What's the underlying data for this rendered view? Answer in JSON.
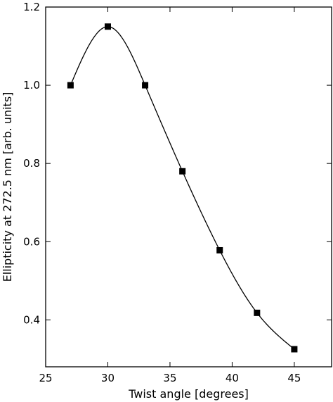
{
  "chart_data": {
    "type": "scatter",
    "title": "",
    "xlabel": "Twist angle [degrees]",
    "ylabel": "Ellipticity at 272.5 nm [arb. units]",
    "xlim": [
      25,
      48
    ],
    "ylim": [
      0.28,
      1.2
    ],
    "xticks": [
      25,
      30,
      35,
      40,
      45
    ],
    "yticks": [
      0.4,
      0.6,
      0.8,
      1.0,
      1.2
    ],
    "xtick_labels": [
      "25",
      "30",
      "35",
      "40",
      "45"
    ],
    "ytick_labels": [
      "0.4",
      "0.6",
      "0.8",
      "1.0",
      "1.2"
    ],
    "grid": false,
    "marker": "square",
    "line": "smooth curve through points",
    "color": "#000000",
    "series": [
      {
        "x": [
          27,
          30,
          33,
          36,
          39,
          42,
          45
        ],
        "y": [
          1.0,
          1.15,
          1.0,
          0.78,
          0.578,
          0.418,
          0.325
        ]
      }
    ]
  }
}
